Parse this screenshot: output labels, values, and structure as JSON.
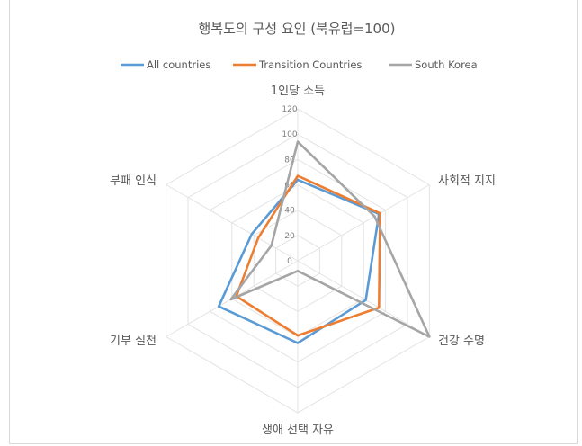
{
  "chart_data": {
    "type": "radar",
    "title": "행복도의 구성 요인 (북유럽=100)",
    "axes": [
      "1인당 소득",
      "사회적 지지",
      "건강 수명",
      "생애 선택 자유",
      "기부 실천",
      "부패 인식"
    ],
    "ticks": [
      "0",
      "20",
      "40",
      "60",
      "80",
      "100",
      "120"
    ],
    "rlim": [
      0,
      120
    ],
    "grid": true,
    "legend_position": "top",
    "series": [
      {
        "name": "All countries",
        "color": "#5b9bd5",
        "values": [
          64,
          74,
          62,
          65,
          72,
          42
        ]
      },
      {
        "name": "Transition Countries",
        "color": "#ed7d31",
        "values": [
          67,
          75,
          74,
          59,
          56,
          36
        ]
      },
      {
        "name": "South Korea",
        "color": "#a5a5a5",
        "values": [
          94,
          70,
          120,
          8,
          61,
          24
        ]
      }
    ]
  }
}
